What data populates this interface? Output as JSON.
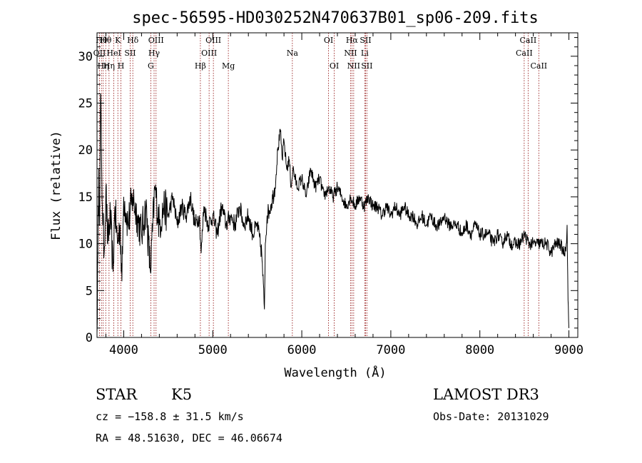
{
  "chart_data": {
    "type": "line",
    "title": "spec-56595-HD030252N470637B01_sp06-209.fits",
    "xlabel": "Wavelength (Å)",
    "ylabel": "Flux (relative)",
    "xlim": [
      3700,
      9100
    ],
    "ylim": [
      0,
      32.5
    ],
    "x_ticks": [
      4000,
      5000,
      6000,
      7000,
      8000,
      9000
    ],
    "y_ticks": [
      0,
      5,
      10,
      15,
      20,
      25,
      30
    ],
    "line_color": "#000000",
    "marker_color": "#8b0000",
    "spectrum": {
      "x": [
        3700,
        3710,
        3720,
        3730,
        3740,
        3750,
        3760,
        3780,
        3800,
        3820,
        3850,
        3880,
        3900,
        3930,
        3960,
        3980,
        4000,
        4050,
        4100,
        4150,
        4200,
        4250,
        4300,
        4350,
        4400,
        4450,
        4500,
        4550,
        4600,
        4650,
        4700,
        4750,
        4800,
        4850,
        4870,
        4900,
        4950,
        5000,
        5050,
        5100,
        5150,
        5200,
        5250,
        5300,
        5350,
        5400,
        5450,
        5500,
        5550,
        5580,
        5590,
        5610,
        5650,
        5700,
        5730,
        5760,
        5780,
        5800,
        5830,
        5860,
        5880,
        5900,
        5950,
        6000,
        6050,
        6100,
        6150,
        6200,
        6250,
        6300,
        6350,
        6400,
        6450,
        6500,
        6550,
        6600,
        6650,
        6700,
        6750,
        6800,
        6850,
        6900,
        6950,
        7000,
        7050,
        7100,
        7150,
        7200,
        7250,
        7300,
        7350,
        7400,
        7450,
        7500,
        7550,
        7600,
        7650,
        7700,
        7750,
        7800,
        7850,
        7900,
        7950,
        8000,
        8050,
        8100,
        8150,
        8200,
        8250,
        8300,
        8350,
        8400,
        8450,
        8500,
        8550,
        8600,
        8650,
        8700,
        8750,
        8800,
        8850,
        8900,
        8950,
        8970,
        8980,
        8990,
        9000
      ],
      "y": [
        0.5,
        9,
        18,
        12,
        26,
        20,
        14,
        9,
        16,
        10,
        13,
        7,
        14,
        10,
        12,
        6,
        15,
        12,
        15,
        13,
        11,
        14,
        7,
        16,
        12,
        14,
        13,
        15,
        12,
        14,
        13,
        15,
        12,
        13,
        9,
        14,
        12,
        13,
        11,
        14,
        12,
        13,
        12,
        14,
        12,
        13,
        11,
        12,
        9,
        3,
        10,
        13,
        14,
        16,
        20,
        22,
        19,
        21,
        18,
        19,
        16,
        18,
        16,
        17,
        15,
        18,
        16,
        17,
        15,
        16,
        15,
        16,
        15,
        14,
        15,
        14,
        15,
        14,
        15,
        14,
        14,
        13,
        14,
        13,
        14,
        13,
        14,
        13,
        13,
        12,
        13,
        12,
        13,
        12,
        12,
        13,
        12,
        12,
        12,
        11,
        12,
        11,
        12,
        11,
        11,
        11,
        10,
        11,
        10,
        11,
        10,
        10,
        10,
        11,
        10,
        10,
        10,
        10,
        10,
        9,
        10,
        10,
        9,
        10,
        12,
        4,
        1
      ]
    },
    "lines": [
      {
        "wl": 3728,
        "label": "OII",
        "row": 2
      },
      {
        "wl": 3750,
        "label": "Hθ",
        "row": 1
      },
      {
        "wl": 3770,
        "label": "Hη",
        "row": 3
      },
      {
        "wl": 3798,
        "label": "Hθ",
        "row": 1
      },
      {
        "wl": 3835,
        "label": "Hη",
        "row": 3
      },
      {
        "wl": 3889,
        "label": "HeI",
        "row": 2
      },
      {
        "wl": 3934,
        "label": "K",
        "row": 1
      },
      {
        "wl": 3969,
        "label": "H",
        "row": 3
      },
      {
        "wl": 4072,
        "label": "SII",
        "row": 2
      },
      {
        "wl": 4102,
        "label": "Hδ",
        "row": 1
      },
      {
        "wl": 4304,
        "label": "G",
        "row": 3
      },
      {
        "wl": 4341,
        "label": "Hγ",
        "row": 2
      },
      {
        "wl": 4363,
        "label": "OIII",
        "row": 1
      },
      {
        "wl": 4861,
        "label": "Hβ",
        "row": 3
      },
      {
        "wl": 4959,
        "label": "OIII",
        "row": 2
      },
      {
        "wl": 5007,
        "label": "OIII",
        "row": 1
      },
      {
        "wl": 5175,
        "label": "Mg",
        "row": 3
      },
      {
        "wl": 5894,
        "label": "Na",
        "row": 2
      },
      {
        "wl": 6300,
        "label": "OI",
        "row": 1
      },
      {
        "wl": 6364,
        "label": "OI",
        "row": 3
      },
      {
        "wl": 6548,
        "label": "NII",
        "row": 2
      },
      {
        "wl": 6563,
        "label": "Hα",
        "row": 1
      },
      {
        "wl": 6583,
        "label": "NII",
        "row": 3
      },
      {
        "wl": 6707,
        "label": "Li",
        "row": 2
      },
      {
        "wl": 6716,
        "label": "SII",
        "row": 1
      },
      {
        "wl": 6731,
        "label": "SII",
        "row": 3
      },
      {
        "wl": 8498,
        "label": "CaII",
        "row": 2
      },
      {
        "wl": 8542,
        "label": "CaII",
        "row": 1
      },
      {
        "wl": 8662,
        "label": "CaII",
        "row": 3
      }
    ]
  },
  "info": {
    "class": "STAR",
    "subclass": "K5",
    "survey": "LAMOST DR3",
    "cz": "cz = −158.8 ± 31.5 km/s",
    "obs_date": "Obs-Date: 20131029",
    "coords": "RA =  48.51630, DEC =  46.06674"
  }
}
